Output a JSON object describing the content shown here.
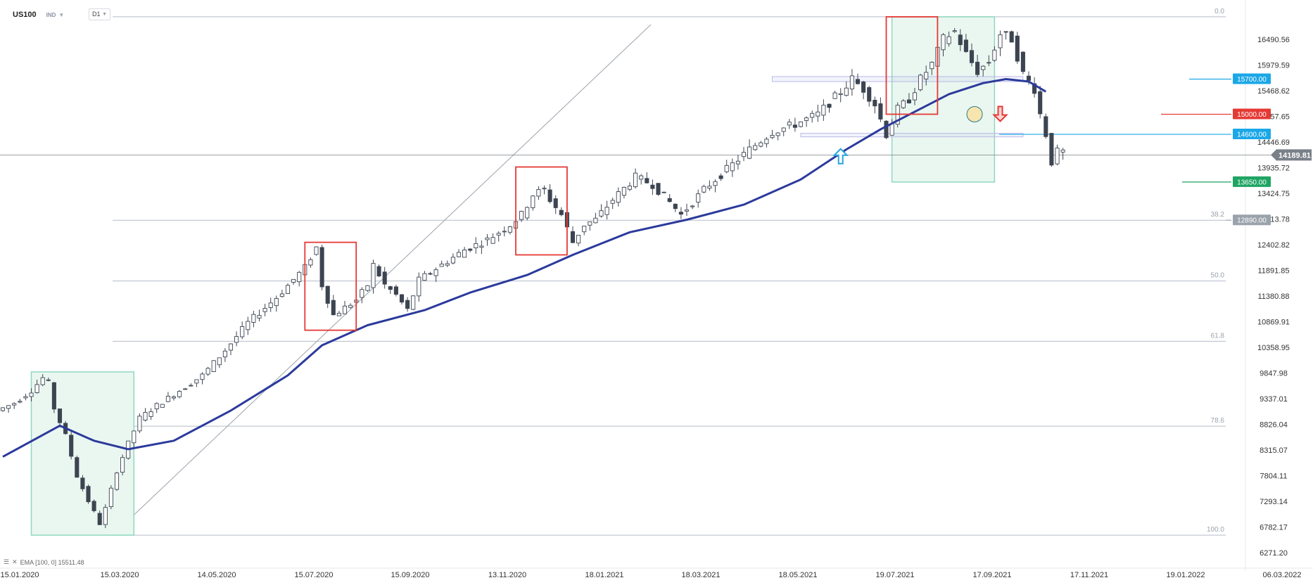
{
  "header": {
    "symbol": "US100",
    "market": "IND",
    "timeframe": "D1"
  },
  "indicator_legend": {
    "text": "EMA [100, 0] 15511.48"
  },
  "colors": {
    "candle": "#3d4451",
    "ema": "#2b3a9c",
    "fib": "#b5bcc8",
    "box_red": "#e53935",
    "box_green_fill": "#eaf7f0",
    "box_green_stroke": "#8fd8c0",
    "tag_blue": "#1ba7e8",
    "tag_red": "#e53935",
    "tag_green": "#1fa463",
    "tag_gray": "#9aa3ab",
    "current_tag": "#7a8088"
  },
  "chart_data": {
    "type": "candlestick",
    "title": "",
    "ylim": [
      6271.2,
      17050
    ],
    "y_ticks": [
      "16490.56",
      "15979.59",
      "15468.62",
      "14957.65",
      "14446.69",
      "13935.72",
      "13424.75",
      "12913.78",
      "12402.82",
      "11891.85",
      "11380.88",
      "10869.91",
      "10358.95",
      "9847.98",
      "9337.01",
      "8826.04",
      "8315.07",
      "7804.11",
      "7293.14",
      "6782.17",
      "6271.20"
    ],
    "x_ticks": [
      "15.01.2020",
      "15.03.2020",
      "14.05.2020",
      "15.07.2020",
      "15.09.2020",
      "13.11.2020",
      "18.01.2021",
      "18.03.2021",
      "18.05.2021",
      "19.07.2021",
      "17.09.2021",
      "17.11.2021",
      "19.01.2022",
      "06.03.2022"
    ],
    "price_path": [
      [
        0,
        9100
      ],
      [
        3,
        9250
      ],
      [
        6,
        9500
      ],
      [
        8,
        9750
      ],
      [
        9,
        9650
      ],
      [
        10,
        9150
      ],
      [
        12,
        8600
      ],
      [
        14,
        7800
      ],
      [
        16,
        7300
      ],
      [
        18,
        6850
      ],
      [
        19,
        7150
      ],
      [
        21,
        7900
      ],
      [
        23,
        8450
      ],
      [
        25,
        8950
      ],
      [
        28,
        9200
      ],
      [
        32,
        9500
      ],
      [
        36,
        9800
      ],
      [
        40,
        10300
      ],
      [
        44,
        10850
      ],
      [
        49,
        11350
      ],
      [
        54,
        11950
      ],
      [
        56,
        12350
      ],
      [
        57,
        11600
      ],
      [
        59,
        11000
      ],
      [
        61,
        11150
      ],
      [
        63,
        11300
      ],
      [
        65,
        11600
      ],
      [
        66,
        12000
      ],
      [
        68,
        11600
      ],
      [
        70,
        11400
      ],
      [
        72,
        11100
      ],
      [
        74,
        11700
      ],
      [
        78,
        12000
      ],
      [
        82,
        12300
      ],
      [
        86,
        12500
      ],
      [
        90,
        12800
      ],
      [
        92,
        13000
      ],
      [
        94,
        13400
      ],
      [
        96,
        13500
      ],
      [
        97,
        13300
      ],
      [
        99,
        13000
      ],
      [
        101,
        12450
      ],
      [
        103,
        12800
      ],
      [
        105,
        12900
      ],
      [
        108,
        13300
      ],
      [
        112,
        13750
      ],
      [
        115,
        13600
      ],
      [
        118,
        13250
      ],
      [
        120,
        13000
      ],
      [
        124,
        13500
      ],
      [
        128,
        13900
      ],
      [
        132,
        14300
      ],
      [
        136,
        14650
      ],
      [
        140,
        14800
      ],
      [
        144,
        15000
      ],
      [
        148,
        15450
      ],
      [
        150,
        15700
      ],
      [
        152,
        15500
      ],
      [
        154,
        15200
      ],
      [
        156,
        14600
      ],
      [
        158,
        15100
      ],
      [
        160,
        15300
      ],
      [
        162,
        15700
      ],
      [
        164,
        16000
      ],
      [
        166,
        16500
      ],
      [
        168,
        16650
      ],
      [
        170,
        16200
      ],
      [
        172,
        15850
      ],
      [
        174,
        16050
      ],
      [
        176,
        16600
      ],
      [
        178,
        16500
      ],
      [
        180,
        15800
      ],
      [
        182,
        15500
      ],
      [
        183,
        15000
      ],
      [
        184,
        14600
      ],
      [
        185,
        14050
      ],
      [
        186,
        14250
      ]
    ],
    "ema": {
      "name": "EMA [100, 0]",
      "value": 15511.48,
      "path": [
        [
          0,
          8180
        ],
        [
          10,
          8800
        ],
        [
          16,
          8500
        ],
        [
          22,
          8330
        ],
        [
          30,
          8500
        ],
        [
          40,
          9100
        ],
        [
          50,
          9800
        ],
        [
          56,
          10400
        ],
        [
          64,
          10800
        ],
        [
          74,
          11100
        ],
        [
          82,
          11450
        ],
        [
          92,
          11800
        ],
        [
          100,
          12200
        ],
        [
          110,
          12650
        ],
        [
          120,
          12900
        ],
        [
          130,
          13200
        ],
        [
          140,
          13700
        ],
        [
          148,
          14300
        ],
        [
          154,
          14700
        ],
        [
          160,
          15050
        ],
        [
          166,
          15400
        ],
        [
          172,
          15620
        ],
        [
          176,
          15700
        ],
        [
          180,
          15650
        ],
        [
          183,
          15450
        ]
      ]
    },
    "current_price": "14189.81",
    "levels": [
      {
        "label": "15700.00",
        "value": 15700,
        "color": "blue"
      },
      {
        "label": "15000.00",
        "value": 15000,
        "color": "red"
      },
      {
        "label": "14600.00",
        "value": 14600,
        "color": "blue"
      },
      {
        "label": "13650.00",
        "value": 13650,
        "color": "green"
      },
      {
        "label": "12890.00",
        "value": 12890,
        "color": "gray"
      }
    ],
    "fibonacci": [
      {
        "label": "0.0",
        "value": 16940
      },
      {
        "label": "38.2",
        "value": 12890
      },
      {
        "label": "50.0",
        "value": 11680
      },
      {
        "label": "61.8",
        "value": 10480
      },
      {
        "label": "78.6",
        "value": 8790
      },
      {
        "label": "100.0",
        "value": 6620
      }
    ]
  }
}
